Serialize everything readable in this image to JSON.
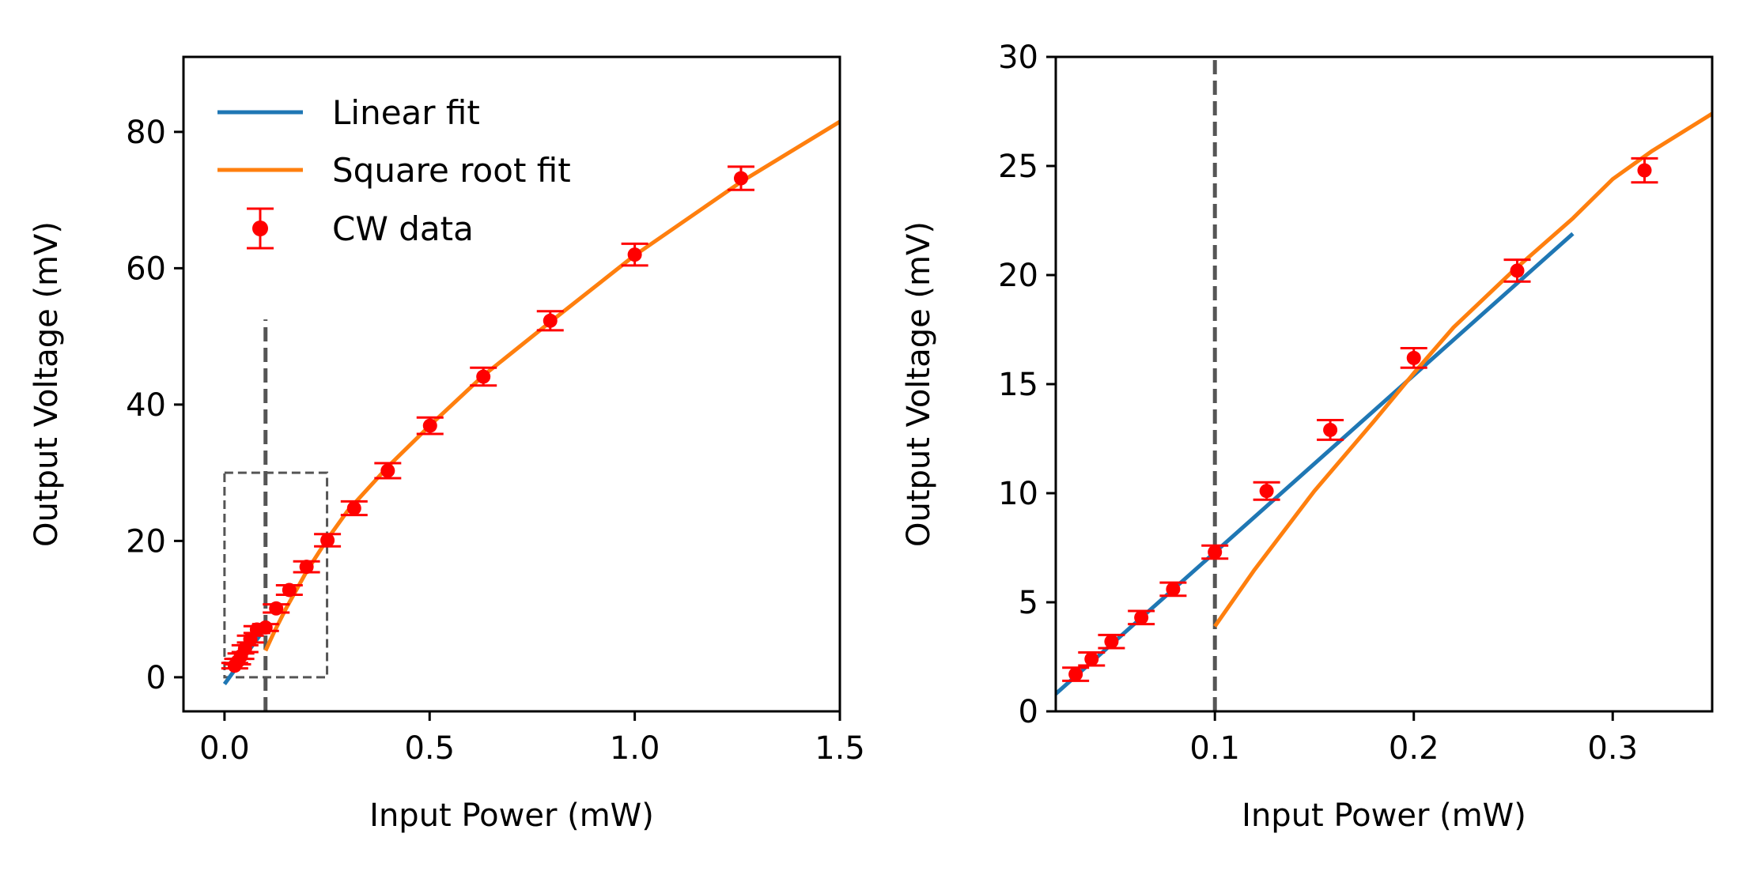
{
  "chart_data": [
    {
      "type": "line",
      "panel": "left",
      "xlabel": "Input Power (mW)",
      "ylabel": "Output Voltage (mV)",
      "xlim": [
        -0.1,
        1.5
      ],
      "ylim": [
        -5,
        91
      ],
      "xticks": [
        0.0,
        0.5,
        1.0,
        1.5
      ],
      "xtick_labels": [
        "0.0",
        "0.5",
        "1.0",
        "1.5"
      ],
      "yticks": [
        0,
        20,
        40,
        60,
        80
      ],
      "ytick_labels": [
        "0",
        "20",
        "40",
        "60",
        "80"
      ],
      "legend": {
        "placement": "upper-left",
        "entries": [
          "Linear fit",
          "Square root fit",
          "CW data"
        ]
      },
      "threshold_line": {
        "x": 0.1,
        "y_range": [
          -5,
          52.5
        ]
      },
      "zoom_box": {
        "x": [
          0.0,
          0.25
        ],
        "y": [
          0,
          30
        ]
      },
      "series": [
        {
          "name": "Linear fit",
          "kind": "line",
          "color": "#1f77b4",
          "x": [
            0.0,
            0.1
          ],
          "y": [
            -1.0,
            7.3
          ]
        },
        {
          "name": "Square root fit",
          "kind": "line",
          "color": "#ff7f0e",
          "x": [
            0.1,
            0.12,
            0.15,
            0.2,
            0.25,
            0.3,
            0.4,
            0.5,
            0.63,
            0.8,
            1.0,
            1.26,
            1.5
          ],
          "y": [
            3.9,
            6.5,
            10.1,
            15.5,
            20.2,
            24.4,
            31.0,
            36.9,
            44.2,
            52.4,
            61.9,
            72.7,
            81.5
          ]
        },
        {
          "name": "CW data",
          "kind": "errorbar",
          "color": "#ff0000",
          "x": [
            0.025,
            0.032,
            0.04,
            0.05,
            0.063,
            0.079,
            0.1,
            0.126,
            0.158,
            0.2,
            0.251,
            0.316,
            0.398,
            0.501,
            0.631,
            0.794,
            1.0,
            1.259
          ],
          "y": [
            1.7,
            2.3,
            3.1,
            4.2,
            5.6,
            7.0,
            7.3,
            10.1,
            12.8,
            16.2,
            20.1,
            24.8,
            30.3,
            36.9,
            44.1,
            52.3,
            62.0,
            73.2
          ],
          "yerr": [
            0.4,
            0.4,
            0.4,
            0.5,
            0.5,
            0.5,
            0.5,
            0.6,
            0.7,
            0.8,
            0.9,
            1.0,
            1.1,
            1.2,
            1.3,
            1.4,
            1.6,
            1.7
          ]
        }
      ]
    },
    {
      "type": "line",
      "panel": "right",
      "xlabel": "Input Power (mW)",
      "ylabel": "Output Voltage (mV)",
      "xlim": [
        0.02,
        0.35
      ],
      "ylim": [
        0,
        30
      ],
      "xticks": [
        0.1,
        0.2,
        0.3
      ],
      "xtick_labels": [
        "0.1",
        "0.2",
        "0.3"
      ],
      "yticks": [
        0,
        5,
        10,
        15,
        20,
        25,
        30
      ],
      "ytick_labels": [
        "0",
        "5",
        "10",
        "15",
        "20",
        "25",
        "30"
      ],
      "threshold_line": {
        "x": 0.1,
        "y_range": [
          0,
          30
        ]
      },
      "series": [
        {
          "name": "Linear fit",
          "kind": "line",
          "color": "#1f77b4",
          "x": [
            0.02,
            0.28
          ],
          "y": [
            0.8,
            21.9
          ]
        },
        {
          "name": "Square root fit",
          "kind": "line",
          "color": "#ff7f0e",
          "x": [
            0.1,
            0.12,
            0.15,
            0.18,
            0.2,
            0.22,
            0.25,
            0.28,
            0.3,
            0.32,
            0.35
          ],
          "y": [
            3.9,
            6.5,
            10.1,
            13.3,
            15.5,
            17.6,
            20.2,
            22.6,
            24.4,
            25.7,
            27.4
          ]
        },
        {
          "name": "CW data",
          "kind": "errorbar",
          "color": "#ff0000",
          "x": [
            0.03,
            0.038,
            0.048,
            0.063,
            0.079,
            0.1,
            0.126,
            0.158,
            0.2,
            0.252,
            0.316
          ],
          "y": [
            1.7,
            2.4,
            3.2,
            4.3,
            5.6,
            7.3,
            10.1,
            12.9,
            16.2,
            20.2,
            24.8
          ],
          "yerr": [
            0.3,
            0.3,
            0.3,
            0.3,
            0.3,
            0.3,
            0.4,
            0.45,
            0.45,
            0.5,
            0.55
          ]
        }
      ]
    }
  ]
}
